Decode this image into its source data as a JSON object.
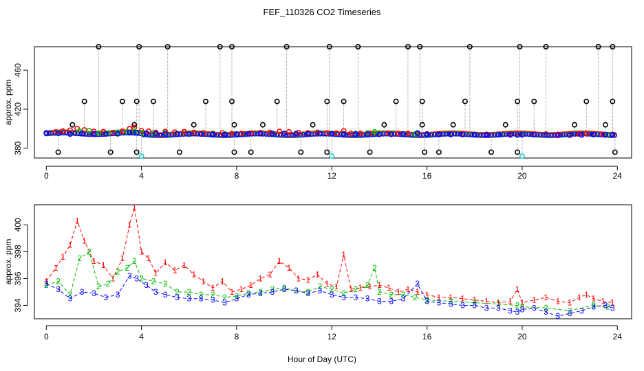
{
  "title": "FEF_110326  CO2 Timeseries",
  "xlabel": "Hour of Day (UTC)",
  "colors": {
    "axis": "#000000",
    "black_points": "#000000",
    "red": "#ff0000",
    "green": "#00bb00",
    "blue": "#0000ff",
    "cyan": "#22cccc",
    "gray_line": "#999999"
  },
  "chart_data": [
    {
      "type": "scatter",
      "title": "",
      "xlabel": "",
      "ylabel": "approx. ppm",
      "xlim": [
        -0.5,
        24.6
      ],
      "ylim": [
        370,
        484
      ],
      "xticks": [
        "0",
        "4",
        "8",
        "12",
        "16",
        "20",
        "24"
      ],
      "yticks": [
        "380",
        "420",
        "460"
      ],
      "series": [
        {
          "name": "black_high",
          "marker": "o",
          "color": "#000000",
          "x": [
            2.2,
            3.9,
            5.1,
            7.3,
            7.8,
            10.1,
            11.9,
            13.1,
            15.2,
            15.7,
            17.8,
            19.9,
            21.0,
            23.2,
            23.8
          ],
          "y": [
            484,
            484,
            484,
            484,
            484,
            484,
            484,
            484,
            484,
            484,
            484,
            484,
            484,
            484,
            484
          ]
        },
        {
          "name": "black_mid",
          "marker": "o",
          "color": "#000000",
          "x": [
            1.6,
            3.2,
            3.8,
            4.5,
            6.7,
            7.8,
            9.7,
            11.8,
            12.5,
            14.7,
            15.8,
            17.6,
            19.8,
            20.5,
            22.7,
            23.8
          ],
          "y": [
            428,
            428,
            428,
            428,
            428,
            428,
            428,
            428,
            428,
            428,
            428,
            428,
            428,
            428,
            428,
            428
          ]
        },
        {
          "name": "black_lowmid",
          "marker": "o",
          "color": "#000000",
          "x": [
            1.1,
            3.7,
            6.2,
            7.9,
            9.1,
            11.2,
            14.2,
            15.8,
            17.1,
            19.3,
            22.2,
            23.5
          ],
          "y": [
            404,
            404,
            404,
            404,
            404,
            404,
            404,
            404,
            404,
            404,
            404,
            404
          ]
        },
        {
          "name": "black_low",
          "marker": "o",
          "color": "#000000",
          "x": [
            0.5,
            2.7,
            3.8,
            5.6,
            7.9,
            8.6,
            10.7,
            11.8,
            13.6,
            15.9,
            16.5,
            18.7,
            19.8,
            23.9
          ],
          "y": [
            376,
            376,
            376,
            376,
            376,
            376,
            376,
            376,
            376,
            376,
            376,
            376,
            376,
            376
          ]
        },
        {
          "name": "cyan",
          "marker": "o",
          "color": "#22cccc",
          "x": [
            4.0,
            12.0,
            20.0
          ],
          "y": [
            372,
            372,
            372
          ]
        },
        {
          "name": "red_1",
          "marker": "1",
          "color": "#ff0000",
          "x": [
            0.0,
            0.4,
            0.7,
            1.0,
            1.3,
            1.6,
            2.0,
            2.4,
            2.8,
            3.2,
            3.5,
            3.7,
            4.0,
            4.3,
            4.6,
            5.0,
            5.4,
            5.8,
            6.2,
            6.6,
            7.0,
            7.4,
            7.8,
            8.2,
            8.6,
            9.0,
            9.4,
            9.8,
            10.2,
            10.6,
            11.0,
            11.4,
            11.8,
            12.2,
            12.5,
            12.8,
            13.2,
            13.6,
            14.0,
            14.4,
            14.8,
            15.2,
            15.6,
            16.0,
            16.5,
            17.0,
            17.5,
            18.0,
            18.5,
            19.0,
            19.5,
            19.8,
            20.0,
            20.5,
            21.0,
            21.5,
            22.0,
            22.4,
            22.7,
            23.0,
            23.4,
            23.8
          ],
          "y": [
            395.8,
            396.8,
            397.6,
            398.5,
            400.3,
            398.8,
            397.3,
            397.0,
            396.0,
            397.5,
            400.0,
            401.3,
            398.0,
            397.5,
            396.4,
            397.2,
            396.6,
            397.0,
            396.3,
            395.8,
            395.3,
            395.8,
            395.0,
            395.2,
            395.5,
            396.0,
            396.3,
            397.3,
            396.8,
            396.0,
            395.9,
            396.3,
            395.6,
            395.4,
            397.8,
            395.2,
            395.3,
            395.4,
            395.5,
            395.3,
            395.0,
            395.2,
            395.0,
            394.8,
            394.6,
            394.6,
            394.5,
            394.4,
            394.3,
            394.2,
            394.3,
            395.2,
            394.2,
            394.4,
            394.6,
            394.3,
            394.2,
            394.6,
            394.8,
            394.5,
            394.3,
            394.2
          ]
        },
        {
          "name": "green_2",
          "marker": "2",
          "color": "#00bb00",
          "x": [
            0.0,
            0.5,
            1.0,
            1.4,
            1.8,
            2.2,
            2.6,
            3.0,
            3.4,
            3.7,
            4.0,
            4.5,
            5.0,
            5.5,
            6.0,
            6.5,
            7.0,
            7.5,
            8.0,
            8.5,
            9.0,
            9.5,
            10.0,
            10.5,
            11.0,
            11.5,
            12.0,
            12.5,
            13.0,
            13.5,
            13.8,
            14.0,
            14.5,
            15.0,
            15.5,
            16.0,
            17.0,
            18.0,
            19.0,
            19.8,
            20.0,
            21.0,
            22.0,
            23.0,
            23.6
          ],
          "y": [
            395.5,
            395.8,
            394.8,
            397.5,
            398.0,
            395.4,
            395.6,
            396.5,
            396.8,
            397.3,
            396.0,
            395.8,
            395.6,
            395.0,
            395.0,
            394.8,
            394.8,
            394.6,
            394.7,
            394.9,
            395.0,
            395.2,
            395.3,
            395.1,
            395.0,
            395.4,
            395.2,
            394.9,
            395.2,
            395.5,
            396.8,
            395.0,
            394.8,
            394.8,
            394.6,
            394.4,
            394.3,
            394.2,
            394.1,
            394.0,
            393.9,
            393.8,
            393.6,
            394.0,
            393.9
          ]
        },
        {
          "name": "blue_3",
          "marker": "3",
          "color": "#0000ff",
          "x": [
            0.0,
            0.5,
            1.0,
            1.5,
            2.0,
            2.5,
            3.0,
            3.5,
            3.8,
            4.2,
            4.6,
            5.0,
            5.5,
            6.0,
            6.5,
            7.0,
            7.5,
            8.0,
            8.5,
            9.0,
            9.5,
            10.0,
            10.5,
            11.0,
            11.5,
            12.0,
            12.5,
            13.0,
            13.5,
            14.0,
            14.5,
            15.0,
            15.6,
            16.0,
            16.5,
            17.0,
            17.5,
            18.0,
            18.5,
            19.0,
            19.5,
            19.8,
            20.0,
            20.5,
            21.0,
            21.5,
            22.0,
            22.5,
            23.0,
            23.5,
            23.8
          ],
          "y": [
            395.6,
            395.2,
            394.5,
            395.0,
            394.9,
            394.6,
            394.8,
            396.2,
            396.0,
            395.5,
            395.0,
            394.8,
            394.6,
            394.5,
            394.5,
            394.4,
            394.2,
            394.5,
            394.8,
            394.9,
            395.0,
            395.2,
            395.1,
            394.9,
            395.1,
            394.8,
            394.6,
            394.6,
            394.5,
            394.3,
            394.3,
            394.5,
            395.6,
            394.3,
            394.2,
            394.1,
            394.0,
            394.0,
            393.8,
            393.8,
            393.6,
            393.5,
            393.7,
            393.8,
            393.5,
            393.2,
            393.4,
            393.6,
            393.9,
            394.0,
            393.8
          ]
        }
      ]
    },
    {
      "type": "line",
      "title": "",
      "xlabel": "Hour of Day (UTC)",
      "ylabel": "approx. ppm",
      "xlim": [
        -0.5,
        24.6
      ],
      "ylim": [
        393.0,
        401.5
      ],
      "xticks": [
        "0",
        "4",
        "8",
        "12",
        "16",
        "20",
        "24"
      ],
      "yticks": [
        "394",
        "396",
        "398",
        "400"
      ],
      "series": [
        {
          "name": "red_1",
          "marker": "1",
          "color": "#ff0000",
          "x": [
            0.0,
            0.4,
            0.7,
            1.0,
            1.3,
            1.6,
            2.0,
            2.4,
            2.8,
            3.2,
            3.5,
            3.7,
            4.0,
            4.3,
            4.6,
            5.0,
            5.4,
            5.8,
            6.2,
            6.6,
            7.0,
            7.4,
            7.8,
            8.2,
            8.6,
            9.0,
            9.4,
            9.8,
            10.2,
            10.6,
            11.0,
            11.4,
            11.8,
            12.2,
            12.5,
            12.8,
            13.2,
            13.6,
            14.0,
            14.4,
            14.8,
            15.2,
            15.6,
            16.0,
            16.5,
            17.0,
            17.5,
            18.0,
            18.5,
            19.0,
            19.5,
            19.8,
            20.0,
            20.5,
            21.0,
            21.5,
            22.0,
            22.4,
            22.7,
            23.0,
            23.4,
            23.8
          ],
          "y": [
            395.8,
            396.8,
            397.6,
            398.5,
            400.3,
            398.8,
            397.3,
            397.0,
            396.0,
            397.5,
            400.0,
            401.3,
            398.0,
            397.5,
            396.4,
            397.2,
            396.6,
            397.0,
            396.3,
            395.8,
            395.3,
            395.8,
            395.0,
            395.2,
            395.5,
            396.0,
            396.3,
            397.3,
            396.8,
            396.0,
            395.9,
            396.3,
            395.6,
            395.4,
            397.8,
            395.2,
            395.3,
            395.4,
            395.5,
            395.3,
            395.0,
            395.2,
            395.0,
            394.8,
            394.6,
            394.6,
            394.5,
            394.4,
            394.3,
            394.2,
            394.3,
            395.2,
            394.2,
            394.4,
            394.6,
            394.3,
            394.2,
            394.6,
            394.8,
            394.5,
            394.3,
            394.2
          ]
        },
        {
          "name": "green_2",
          "marker": "2",
          "color": "#00bb00",
          "x": [
            0.0,
            0.5,
            1.0,
            1.4,
            1.8,
            2.2,
            2.6,
            3.0,
            3.4,
            3.7,
            4.0,
            4.5,
            5.0,
            5.5,
            6.0,
            6.5,
            7.0,
            7.5,
            8.0,
            8.5,
            9.0,
            9.5,
            10.0,
            10.5,
            11.0,
            11.5,
            12.0,
            12.5,
            13.0,
            13.5,
            13.8,
            14.0,
            14.5,
            15.0,
            15.5,
            16.0,
            17.0,
            18.0,
            19.0,
            19.8,
            20.0,
            21.0,
            22.0,
            23.0,
            23.6
          ],
          "y": [
            395.5,
            395.8,
            394.8,
            397.5,
            398.0,
            395.4,
            395.6,
            396.5,
            396.8,
            397.3,
            396.0,
            395.8,
            395.6,
            395.0,
            395.0,
            394.8,
            394.8,
            394.6,
            394.7,
            394.9,
            395.0,
            395.2,
            395.3,
            395.1,
            395.0,
            395.4,
            395.2,
            394.9,
            395.2,
            395.5,
            396.8,
            395.0,
            394.8,
            394.8,
            394.6,
            394.4,
            394.3,
            394.2,
            394.1,
            394.0,
            393.9,
            393.8,
            393.6,
            394.0,
            393.9
          ]
        },
        {
          "name": "blue_3",
          "marker": "3",
          "color": "#0000ff",
          "x": [
            0.0,
            0.5,
            1.0,
            1.5,
            2.0,
            2.5,
            3.0,
            3.5,
            3.8,
            4.2,
            4.6,
            5.0,
            5.5,
            6.0,
            6.5,
            7.0,
            7.5,
            8.0,
            8.5,
            9.0,
            9.5,
            10.0,
            10.5,
            11.0,
            11.5,
            12.0,
            12.5,
            13.0,
            13.5,
            14.0,
            14.5,
            15.0,
            15.6,
            16.0,
            16.5,
            17.0,
            17.5,
            18.0,
            18.5,
            19.0,
            19.5,
            19.8,
            20.0,
            20.5,
            21.0,
            21.5,
            22.0,
            22.5,
            23.0,
            23.5,
            23.8
          ],
          "y": [
            395.6,
            395.2,
            394.5,
            395.0,
            394.9,
            394.6,
            394.8,
            396.2,
            396.0,
            395.5,
            395.0,
            394.8,
            394.6,
            394.5,
            394.5,
            394.4,
            394.2,
            394.5,
            394.8,
            394.9,
            395.0,
            395.2,
            395.1,
            394.9,
            395.1,
            394.8,
            394.6,
            394.6,
            394.5,
            394.3,
            394.3,
            394.5,
            395.6,
            394.3,
            394.2,
            394.1,
            394.0,
            394.0,
            393.8,
            393.8,
            393.6,
            393.5,
            393.7,
            393.8,
            393.5,
            393.2,
            393.4,
            393.6,
            393.9,
            394.0,
            393.8
          ]
        }
      ]
    }
  ]
}
